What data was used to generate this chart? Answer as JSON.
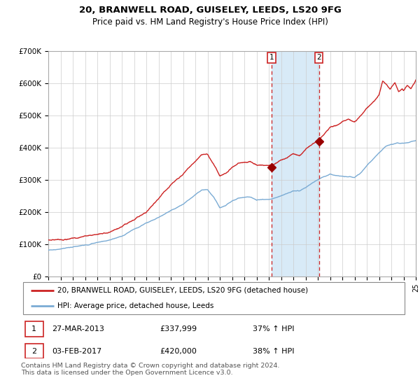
{
  "title": "20, BRANWELL ROAD, GUISELEY, LEEDS, LS20 9FG",
  "subtitle": "Price paid vs. HM Land Registry's House Price Index (HPI)",
  "ylim": [
    0,
    700000
  ],
  "yticks": [
    0,
    100000,
    200000,
    300000,
    400000,
    500000,
    600000,
    700000
  ],
  "ytick_labels": [
    "£0",
    "£100K",
    "£200K",
    "£300K",
    "£400K",
    "£500K",
    "£600K",
    "£700K"
  ],
  "hpi_color": "#7aabd4",
  "price_color": "#cc2222",
  "marker_color": "#990000",
  "shade_color": "#d8eaf7",
  "grid_color": "#cccccc",
  "background_color": "#ffffff",
  "sale1_date": "27-MAR-2013",
  "sale1_price": "£337,999",
  "sale1_hpi": "37% ↑ HPI",
  "sale2_date": "03-FEB-2017",
  "sale2_price": "£420,000",
  "sale2_hpi": "38% ↑ HPI",
  "legend_label1": "20, BRANWELL ROAD, GUISELEY, LEEDS, LS20 9FG (detached house)",
  "legend_label2": "HPI: Average price, detached house, Leeds",
  "footnote": "Contains HM Land Registry data © Crown copyright and database right 2024.\nThis data is licensed under the Open Government Licence v3.0.",
  "sale1_year": 2013.23,
  "sale2_year": 2017.09,
  "sale1_val": 337999,
  "sale2_val": 420000
}
